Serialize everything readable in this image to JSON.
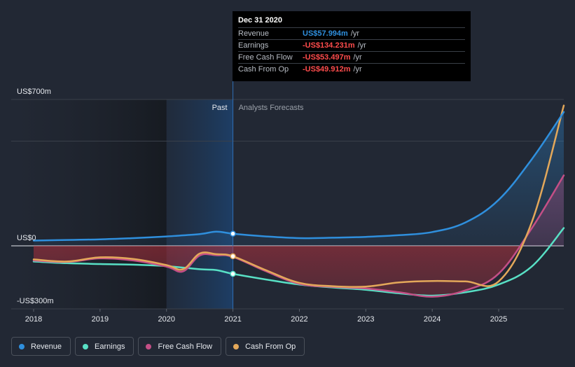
{
  "chart_data": {
    "type": "line",
    "x_labels": [
      "2018",
      "2019",
      "2020",
      "2021",
      "2022",
      "2023",
      "2024",
      "2025"
    ],
    "y_labels": [
      "US$700m",
      "US$0",
      "-US$300m"
    ],
    "ylim": [
      -300,
      700
    ],
    "xlim": [
      2018.0,
      2025.98
    ],
    "past_label": "Past",
    "forecast_label": "Analysts Forecasts",
    "divider_x": 2021.0,
    "series": [
      {
        "name": "Revenue",
        "color": "#2f8fdd",
        "points": [
          [
            2018.0,
            25
          ],
          [
            2018.5,
            28
          ],
          [
            2019.0,
            31
          ],
          [
            2019.5,
            37
          ],
          [
            2020.0,
            45
          ],
          [
            2020.5,
            56
          ],
          [
            2020.75,
            68
          ],
          [
            2021.0,
            58
          ],
          [
            2021.5,
            45
          ],
          [
            2022.0,
            37
          ],
          [
            2022.5,
            39
          ],
          [
            2023.0,
            43
          ],
          [
            2023.5,
            51
          ],
          [
            2024.0,
            66
          ],
          [
            2024.5,
            112
          ],
          [
            2025.0,
            220
          ],
          [
            2025.5,
            415
          ],
          [
            2025.98,
            640
          ]
        ]
      },
      {
        "name": "Earnings",
        "color": "#58e0c5",
        "points": [
          [
            2018.0,
            -75
          ],
          [
            2018.5,
            -83
          ],
          [
            2019.0,
            -87
          ],
          [
            2019.5,
            -90
          ],
          [
            2020.0,
            -97
          ],
          [
            2020.5,
            -112
          ],
          [
            2020.75,
            -116
          ],
          [
            2021.0,
            -134
          ],
          [
            2021.5,
            -161
          ],
          [
            2022.0,
            -185
          ],
          [
            2022.5,
            -199
          ],
          [
            2023.0,
            -210
          ],
          [
            2023.5,
            -227
          ],
          [
            2024.0,
            -238
          ],
          [
            2024.5,
            -222
          ],
          [
            2025.0,
            -185
          ],
          [
            2025.5,
            -98
          ],
          [
            2025.98,
            85
          ]
        ]
      },
      {
        "name": "Free Cash Flow",
        "color": "#c44f86",
        "points": [
          [
            2018.0,
            -70
          ],
          [
            2018.5,
            -77
          ],
          [
            2019.0,
            -60
          ],
          [
            2019.5,
            -70
          ],
          [
            2020.0,
            -99
          ],
          [
            2020.25,
            -122
          ],
          [
            2020.5,
            -46
          ],
          [
            2020.75,
            -45
          ],
          [
            2021.0,
            -53
          ],
          [
            2021.5,
            -122
          ],
          [
            2022.0,
            -182
          ],
          [
            2022.5,
            -196
          ],
          [
            2023.0,
            -204
          ],
          [
            2023.5,
            -222
          ],
          [
            2024.0,
            -243
          ],
          [
            2024.5,
            -213
          ],
          [
            2025.0,
            -133
          ],
          [
            2025.5,
            85
          ],
          [
            2025.98,
            337
          ]
        ]
      },
      {
        "name": "Cash From Op",
        "color": "#e3a85a",
        "points": [
          [
            2018.0,
            -65
          ],
          [
            2018.5,
            -75
          ],
          [
            2019.0,
            -55
          ],
          [
            2019.5,
            -63
          ],
          [
            2020.0,
            -92
          ],
          [
            2020.25,
            -112
          ],
          [
            2020.5,
            -37
          ],
          [
            2020.75,
            -40
          ],
          [
            2021.0,
            -50
          ],
          [
            2021.5,
            -117
          ],
          [
            2022.0,
            -177
          ],
          [
            2022.5,
            -193
          ],
          [
            2023.0,
            -195
          ],
          [
            2023.5,
            -175
          ],
          [
            2024.0,
            -168
          ],
          [
            2024.5,
            -170
          ],
          [
            2025.0,
            -170
          ],
          [
            2025.5,
            115
          ],
          [
            2025.98,
            671
          ]
        ]
      }
    ]
  },
  "tooltip": {
    "date": "Dec 31 2020",
    "rows": [
      {
        "label": "Revenue",
        "value": "US$57.994m",
        "unit": "/yr",
        "color": "#2f8fdd"
      },
      {
        "label": "Earnings",
        "value": "-US$134.231m",
        "unit": "/yr",
        "color": "#ff4c4c"
      },
      {
        "label": "Free Cash Flow",
        "value": "-US$53.497m",
        "unit": "/yr",
        "color": "#ff4c4c"
      },
      {
        "label": "Cash From Op",
        "value": "-US$49.912m",
        "unit": "/yr",
        "color": "#ff4c4c"
      }
    ]
  },
  "legend": [
    {
      "label": "Revenue",
      "color": "#2f8fdd"
    },
    {
      "label": "Earnings",
      "color": "#58e0c5"
    },
    {
      "label": "Free Cash Flow",
      "color": "#c44f86"
    },
    {
      "label": "Cash From Op",
      "color": "#e3a85a"
    }
  ]
}
